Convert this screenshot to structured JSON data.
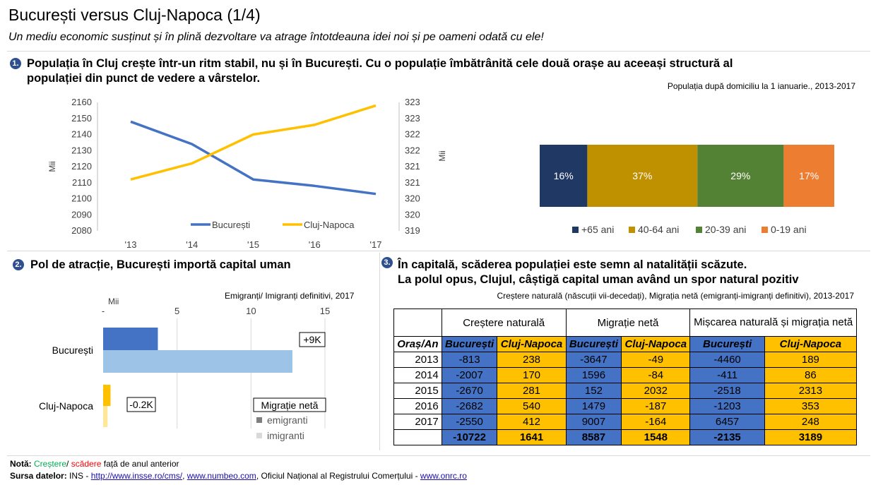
{
  "header": {
    "title": "București versus Cluj-Napoca (1/4)",
    "subtitle": "Un mediu economic susținut și în plină dezvoltare va atrage întotdeauna idei noi și pe oameni odată cu ele!"
  },
  "section1": {
    "badge": "1.",
    "heading_line1": "Populația în Cluj crește într-un ritm stabil, nu și în București. Cu o populație îmbătrânită cele două orașe au aceeași structură al",
    "heading_line2": "populației din punct de vedere a vârstelor.",
    "source_note": "Populația după domiciliu la 1 ianuarie., 2013-2017"
  },
  "section2": {
    "badge": "2.",
    "heading": "Pol de atracție, București importă capital uman",
    "chart_note": "Emigranți/ Imigranți definitivi, 2017",
    "unit": "Mii"
  },
  "section3": {
    "badge": "3.",
    "heading_line1": "În capitală, scăderea populației este semn al natalității scăzute.",
    "heading_line2": "La polul opus, Clujul, câștigă capital uman având un spor natural pozitiv",
    "source_note": "Creștere naturală (născuții vii-decedați), Migrația netă (emigranți-imigranți definitivi), 2013-2017"
  },
  "chart_data": [
    {
      "type": "line",
      "x": [
        "'13",
        "'14",
        "'15",
        "'16",
        "'17"
      ],
      "series": [
        {
          "name": "București",
          "axis": "left",
          "color": "#4472c4",
          "values": [
            2148,
            2134,
            2112,
            2108,
            2103
          ]
        },
        {
          "name": "Cluj-Napoca",
          "axis": "right",
          "color": "#ffc000",
          "values": [
            320.6,
            321.1,
            322.0,
            322.3,
            322.9
          ]
        }
      ],
      "ylabel_left": "Mii",
      "ylabel_right": "Mii",
      "ylim_left": [
        2080,
        2160
      ],
      "yticks_left": [
        "2080",
        "2090",
        "2100",
        "2110",
        "2120",
        "2130",
        "2140",
        "2150",
        "2160"
      ],
      "ylim_right": [
        319,
        323
      ],
      "yticks_right": [
        "319",
        "320",
        "320",
        "321",
        "321",
        "322",
        "322",
        "323",
        "323"
      ],
      "legend": "bottom-right",
      "grid": false
    },
    {
      "type": "bar",
      "stacked": true,
      "orientation": "horizontal",
      "series": [
        {
          "name": "+65 ani",
          "value": 16,
          "label": "16%",
          "color": "#203864"
        },
        {
          "name": "40-64 ani",
          "value": 37,
          "label": "37%",
          "color": "#bf9000"
        },
        {
          "name": "20-39 ani",
          "value": 29,
          "label": "29%",
          "color": "#548235"
        },
        {
          "name": "0-19 ani",
          "value": 17,
          "label": "17%",
          "color": "#ed7d31"
        }
      ],
      "legend": "bottom"
    },
    {
      "type": "bar",
      "orientation": "horizontal",
      "categories": [
        "București",
        "Cluj-Napoca"
      ],
      "series": [
        {
          "name": "emigranti",
          "values": [
            3.7,
            0.5
          ],
          "colors": [
            "#4472c4",
            "#ffc000"
          ]
        },
        {
          "name": "imigranti",
          "values": [
            12.8,
            0.3
          ],
          "colors": [
            "#9dc3e6",
            "#ffe699"
          ]
        }
      ],
      "net_labels": [
        "+9K",
        "-0.2K"
      ],
      "xlim": [
        0,
        15
      ],
      "xticks": [
        "-",
        "5",
        "10",
        "15"
      ],
      "xlabel": "Mii",
      "legend_title": "Migrație netă",
      "legend": "bottom-right"
    },
    {
      "type": "table",
      "group_headers": [
        "Creștere naturală",
        "Migrație netă",
        "Mișcarea naturală și migrația netă"
      ],
      "row_header_label": "Oraș/An",
      "column_headers": [
        "București",
        "Cluj-Napoca",
        "București",
        "Cluj-Napoca",
        "București",
        "Cluj-Napoca"
      ],
      "rows": [
        {
          "year": "2013",
          "values": [
            "-813",
            "238",
            "-3647",
            "-49",
            "-4460",
            "189"
          ]
        },
        {
          "year": "2014",
          "values": [
            "-2007",
            "170",
            "1596",
            "-84",
            "-411",
            "86"
          ]
        },
        {
          "year": "2015",
          "values": [
            "-2670",
            "281",
            "152",
            "2032",
            "-2518",
            "2313"
          ]
        },
        {
          "year": "2016",
          "values": [
            "-2682",
            "540",
            "1479",
            "-187",
            "-1203",
            "353"
          ]
        },
        {
          "year": "2017",
          "values": [
            "-2550",
            "412",
            "9007",
            "-164",
            "6457",
            "248"
          ]
        }
      ],
      "totals": [
        "-10722",
        "1641",
        "8587",
        "1548",
        "-2135",
        "3189"
      ]
    }
  ],
  "footer": {
    "note_label": "Notă:",
    "note_up": "Creștere",
    "note_sep": "/",
    "note_down": "scădere",
    "note_rest": "față de anul anterior",
    "note_up_color": "#00b050",
    "note_down_color": "#ff0000",
    "sources_label": "Sursa datelor:",
    "sources_prefix": "INS - ",
    "link1": "http://www.insse.ro/cms/",
    "sep1": ", ",
    "link2": "www.numbeo.com",
    "middle": ", Oficiul Național al Registrului Comerțului - ",
    "link3": "www.onrc.ro"
  }
}
